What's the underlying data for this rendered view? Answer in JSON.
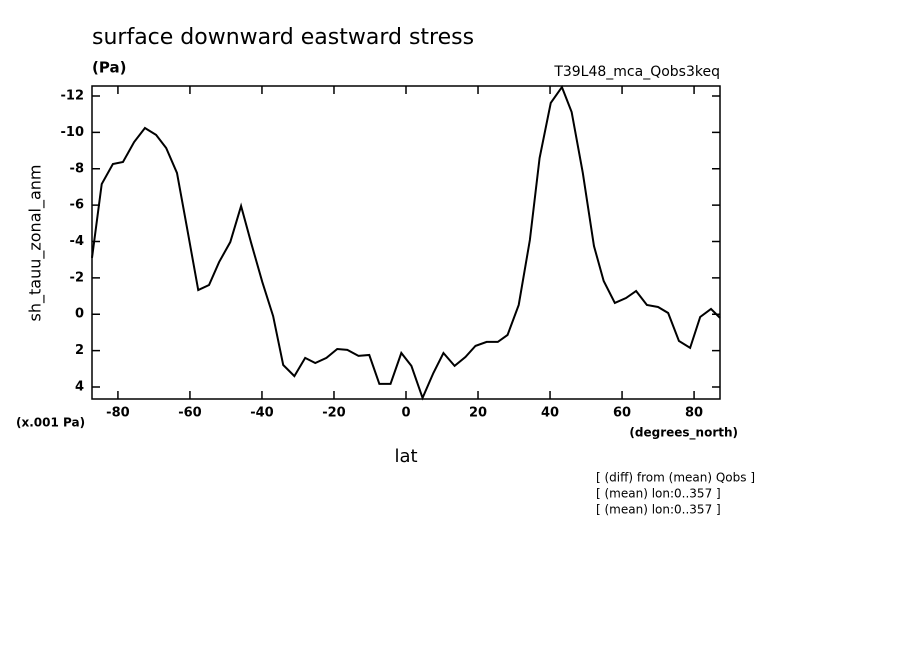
{
  "chart_data": {
    "type": "line",
    "title": "surface downward eastward stress",
    "subtitle": "(Pa)",
    "run_label": "T39L48_mca_Qobs3keq",
    "ylabel": "sh_tauu_zonal_anm",
    "yunit": "(x.001 Pa)",
    "xunit": "(degrees_north)",
    "xlabel": "lat",
    "annotations": [
      "[ (diff) from (mean) Qobs ]",
      "[ (mean) lon:0..357 ]",
      "[ (mean) lon:0..357 ]"
    ],
    "x": [
      -87.2,
      -84.5,
      -81.4,
      -78.6,
      -75.5,
      -72.5,
      -69.4,
      -66.6,
      -63.6,
      -60.8,
      -57.7,
      -54.7,
      -51.9,
      -48.8,
      -45.8,
      -43.0,
      -39.9,
      -36.9,
      -34.1,
      -31.0,
      -28.0,
      -25.2,
      -22.1,
      -19.1,
      -16.3,
      -13.2,
      -10.2,
      -7.4,
      -4.3,
      -1.3,
      1.5,
      4.6,
      7.6,
      10.4,
      13.5,
      16.5,
      19.3,
      22.4,
      25.5,
      28.2,
      31.3,
      34.4,
      37.1,
      40.2,
      43.3,
      46.0,
      49.1,
      52.2,
      54.9,
      58.0,
      61.1,
      63.9,
      66.9,
      70.0,
      72.8,
      75.8,
      78.9,
      81.7,
      84.7,
      87.2
    ],
    "series": [
      {
        "name": "sh_tauu_zonal_anm",
        "color": "#000000",
        "values": [
          -3.1,
          -7.16,
          -8.26,
          -8.37,
          -9.47,
          -10.24,
          -9.86,
          -9.14,
          -7.77,
          -4.74,
          -1.33,
          -1.61,
          -2.87,
          -3.97,
          -5.95,
          -3.92,
          -1.77,
          0.1,
          2.79,
          3.4,
          2.4,
          2.68,
          2.4,
          1.91,
          1.96,
          2.29,
          2.24,
          3.83,
          3.83,
          2.13,
          2.84,
          4.6,
          3.23,
          2.13,
          2.84,
          2.35,
          1.74,
          1.52,
          1.52,
          1.14,
          -0.51,
          -4.08,
          -8.59,
          -11.62,
          -12.49,
          -11.12,
          -7.77,
          -3.75,
          -1.83,
          -0.62,
          -0.89,
          -1.28,
          -0.51,
          -0.4,
          -0.07,
          1.47,
          1.85,
          0.15,
          -0.29,
          0.2
        ]
      }
    ],
    "xlim": [
      -87.2,
      87.2
    ],
    "xticks": [
      -80,
      -60,
      -40,
      -20,
      0,
      20,
      40,
      60,
      80
    ],
    "ylim": [
      4.66,
      -12.55
    ],
    "yticks": [
      4,
      2,
      0,
      -2,
      -4,
      -6,
      -8,
      -10,
      -12
    ]
  }
}
